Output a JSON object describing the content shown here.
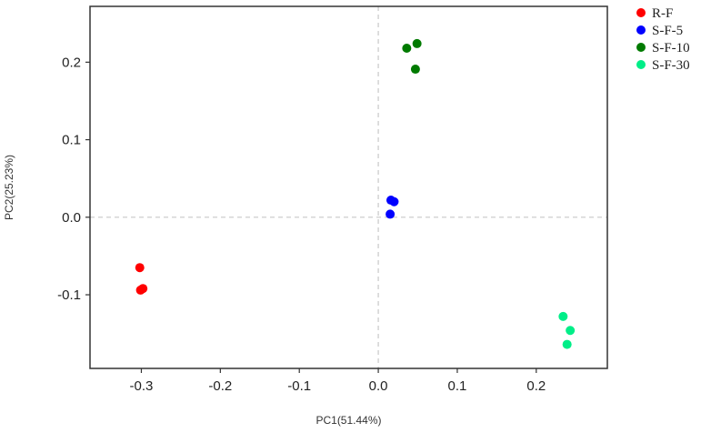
{
  "chart_data": {
    "type": "scatter",
    "xlabel": "PC1(51.44%)",
    "ylabel": "PC2(25.23%)",
    "xlim": [
      -0.365,
      0.29
    ],
    "ylim": [
      -0.195,
      0.272
    ],
    "x_ticks": [
      -0.3,
      -0.2,
      -0.1,
      0.0,
      0.1,
      0.2
    ],
    "x_tick_labels": [
      "-0.3",
      "-0.2",
      "-0.1",
      "0.0",
      "0.1",
      "0.2"
    ],
    "y_ticks": [
      -0.1,
      0.0,
      0.1,
      0.2
    ],
    "y_tick_labels": [
      "-0.1",
      "0.0",
      "0.1",
      "0.2"
    ],
    "reference_lines": {
      "x": 0,
      "y": 0,
      "style": "dashed"
    },
    "grid": false,
    "legend_position": "right",
    "series": [
      {
        "name": "R-F",
        "color": "#ff0000",
        "points": [
          [
            -0.302,
            -0.065
          ],
          [
            -0.301,
            -0.094
          ],
          [
            -0.298,
            -0.092
          ]
        ]
      },
      {
        "name": "S-F-5",
        "color": "#0000ff",
        "points": [
          [
            0.016,
            0.022
          ],
          [
            0.02,
            0.02
          ],
          [
            0.015,
            0.004
          ]
        ]
      },
      {
        "name": "S-F-10",
        "color": "#007a00",
        "points": [
          [
            0.036,
            0.218
          ],
          [
            0.049,
            0.224
          ],
          [
            0.047,
            0.191
          ]
        ]
      },
      {
        "name": "S-F-30",
        "color": "#00ee88",
        "points": [
          [
            0.234,
            -0.128
          ],
          [
            0.243,
            -0.146
          ],
          [
            0.239,
            -0.164
          ]
        ]
      }
    ]
  }
}
